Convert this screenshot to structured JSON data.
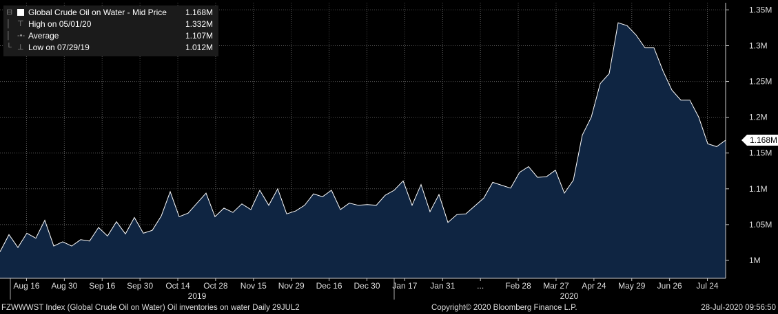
{
  "legend": {
    "series_label": "Global Crude Oil on Water - Mid Price",
    "series_value": "1.168M",
    "high_label": "High on 05/01/20",
    "high_value": "1.332M",
    "avg_label": "Average",
    "avg_value": "1.107M",
    "low_label": "Low on 07/29/19",
    "low_value": "1.012M"
  },
  "last_value_tag": "1.168M",
  "footer": {
    "left": "FZWWWST Index (Global Crude Oil on Water) Oil inventories on water  Daily 29JUL2",
    "center": "Copyright© 2020 Bloomberg Finance L.P.",
    "right": "28-Jul-2020 09:56:50"
  },
  "colors": {
    "fill": "#0f2542",
    "line": "#ffffff",
    "grid": "#5a5a5a",
    "background": "#000000"
  },
  "chart_data": {
    "type": "area",
    "title": "Global Crude Oil on Water - Mid Price",
    "ylim": [
      0.975,
      1.36
    ],
    "y_ticks": [
      1.0,
      1.05,
      1.1,
      1.15,
      1.2,
      1.25,
      1.3,
      1.35
    ],
    "y_tick_labels": [
      "1M",
      "1.05M",
      "1.1M",
      "1.15M",
      "1.2M",
      "1.25M",
      "1.3M",
      "1.35M"
    ],
    "x_tick_labels": [
      "Aug 16",
      "Aug 30",
      "Sep 16",
      "Sep 30",
      "Oct 14",
      "Oct 28",
      "Nov 15",
      "Nov 29",
      "Dec 16",
      "Dec 30",
      "Jan 17",
      "Jan 31",
      "...",
      "Feb 28",
      "Mar 27",
      "Apr 24",
      "May 29",
      "Jun 26",
      "Jul 24"
    ],
    "x_year_labels": [
      "2019",
      "2020"
    ],
    "grid": true,
    "legend_position": "top-left",
    "values": [
      1.012,
      1.036,
      1.018,
      1.038,
      1.031,
      1.056,
      1.02,
      1.026,
      1.02,
      1.029,
      1.027,
      1.046,
      1.034,
      1.054,
      1.037,
      1.06,
      1.038,
      1.042,
      1.062,
      1.096,
      1.061,
      1.066,
      1.08,
      1.094,
      1.061,
      1.073,
      1.067,
      1.079,
      1.071,
      1.098,
      1.077,
      1.1,
      1.065,
      1.069,
      1.077,
      1.093,
      1.089,
      1.098,
      1.071,
      1.08,
      1.077,
      1.078,
      1.077,
      1.091,
      1.098,
      1.111,
      1.077,
      1.106,
      1.068,
      1.092,
      1.053,
      1.064,
      1.065,
      1.076,
      1.087,
      1.109,
      1.105,
      1.101,
      1.123,
      1.131,
      1.116,
      1.117,
      1.126,
      1.094,
      1.112,
      1.175,
      1.2,
      1.247,
      1.261,
      1.332,
      1.328,
      1.315,
      1.297,
      1.297,
      1.265,
      1.238,
      1.224,
      1.224,
      1.2,
      1.163,
      1.159,
      1.168
    ]
  }
}
